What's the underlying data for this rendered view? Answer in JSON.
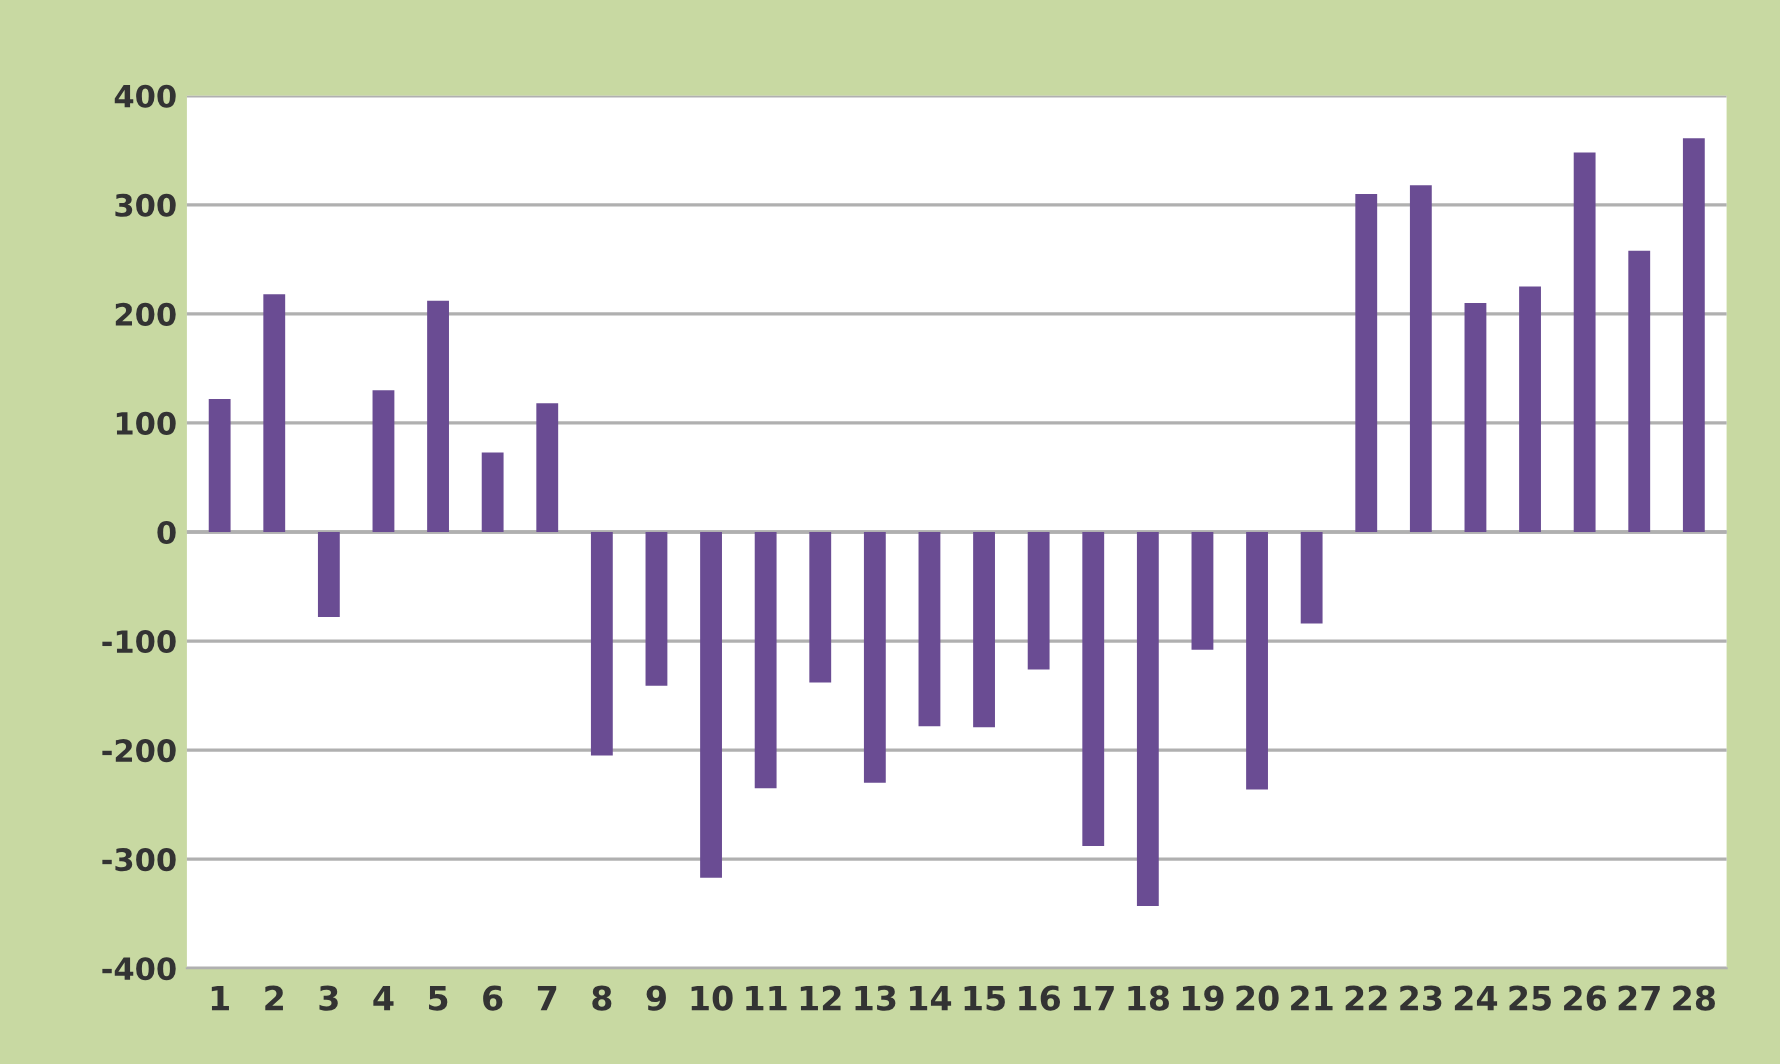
{
  "chart_data": {
    "type": "bar",
    "categories": [
      "1",
      "2",
      "3",
      "4",
      "5",
      "6",
      "7",
      "8",
      "9",
      "10",
      "11",
      "12",
      "13",
      "14",
      "15",
      "16",
      "17",
      "18",
      "19",
      "20",
      "21",
      "22",
      "23",
      "24",
      "25",
      "26",
      "27",
      "28"
    ],
    "values": [
      122,
      218,
      -78,
      130,
      212,
      73,
      118,
      -205,
      -141,
      -317,
      -235,
      -138,
      -230,
      -178,
      -179,
      -126,
      -288,
      -343,
      -108,
      -236,
      -84,
      310,
      318,
      210,
      225,
      348,
      258,
      361
    ],
    "color": "#6a4c93",
    "ylim": [
      -400,
      400
    ],
    "yticks": [
      -400,
      -300,
      -200,
      -100,
      0,
      100,
      200,
      300,
      400
    ],
    "grid": "y"
  }
}
